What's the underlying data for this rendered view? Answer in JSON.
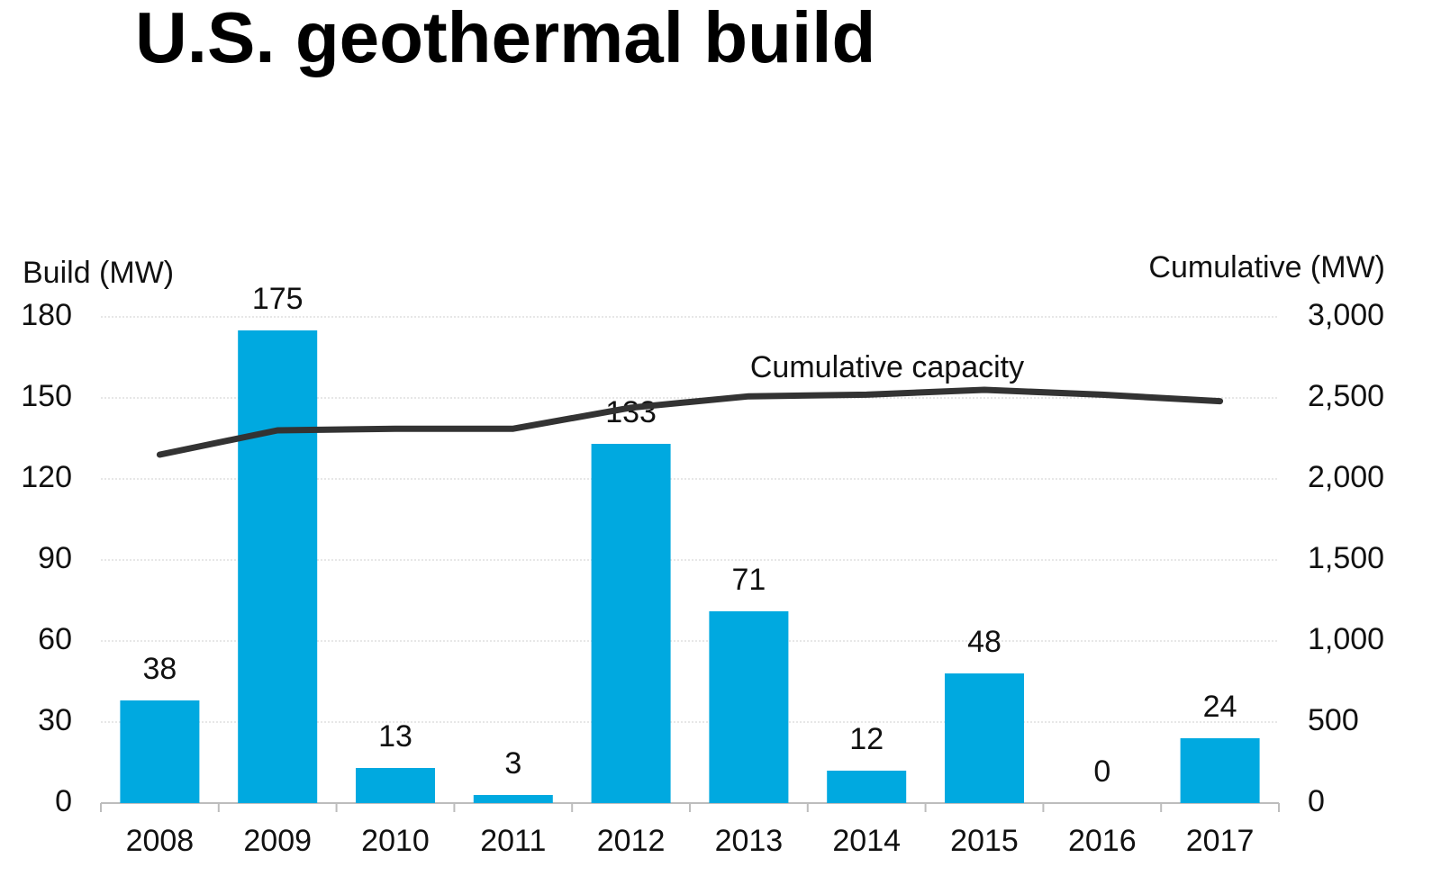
{
  "chart_data": {
    "type": "bar",
    "title": "U.S. geothermal build",
    "y_label": "Build (MW)",
    "y2_label": "Cumulative (MW)",
    "categories": [
      "2008",
      "2009",
      "2010",
      "2011",
      "2012",
      "2013",
      "2014",
      "2015",
      "2016",
      "2017"
    ],
    "series": [
      {
        "type": "bar",
        "color": "#00a9e0",
        "values": [
          38,
          175,
          13,
          3,
          133,
          71,
          12,
          48,
          0,
          24
        ]
      },
      {
        "type": "line",
        "name": "Cumulative capacity",
        "axis": "y2",
        "color": "#333333",
        "values": [
          2150,
          2300,
          2310,
          2310,
          2440,
          2510,
          2520,
          2550,
          2520,
          2480
        ]
      }
    ],
    "ylim": [
      0,
      180
    ],
    "yticks": [
      0,
      30,
      60,
      90,
      120,
      150,
      180
    ],
    "y2lim": [
      0,
      3000
    ],
    "y2ticks": [
      0,
      500,
      {
        "value": 1000,
        "label": "1,000"
      },
      {
        "value": 1500,
        "label": "1,500"
      },
      {
        "value": 2000,
        "label": "2,000"
      },
      {
        "value": 2500,
        "label": "2,500"
      },
      {
        "value": 3000,
        "label": "3,000"
      }
    ],
    "grid": true
  }
}
